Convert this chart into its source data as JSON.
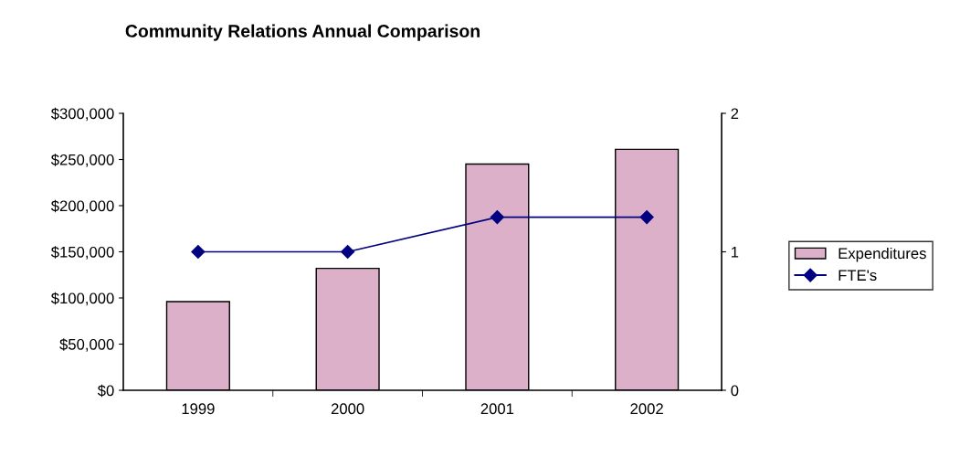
{
  "chart_data": {
    "type": "bar",
    "title": "Community Relations Annual Comparison",
    "categories": [
      "1999",
      "2000",
      "2001",
      "2002"
    ],
    "series": [
      {
        "name": "Expenditures",
        "color": "#dcb0c8",
        "values": [
          96000,
          132000,
          245000,
          261000
        ]
      },
      {
        "name": "FTE's",
        "type": "line",
        "axis": "y2",
        "color": "#000080",
        "values": [
          1,
          1,
          1.25,
          1.25
        ]
      }
    ],
    "ylim": [
      0,
      300000
    ],
    "yticks": [
      {
        "value": 0,
        "label": "$0"
      },
      {
        "value": 50000,
        "label": "$50,000"
      },
      {
        "value": 100000,
        "label": "$100,000"
      },
      {
        "value": 150000,
        "label": "$150,000"
      },
      {
        "value": 200000,
        "label": "$200,000"
      },
      {
        "value": 250000,
        "label": "$250,000"
      },
      {
        "value": 300000,
        "label": "$300,000"
      }
    ],
    "y2lim": [
      0,
      2
    ],
    "y2ticks": [
      0,
      1,
      2
    ],
    "marker": "diamond",
    "line_style": "solid",
    "grid": false,
    "legend": "right"
  }
}
